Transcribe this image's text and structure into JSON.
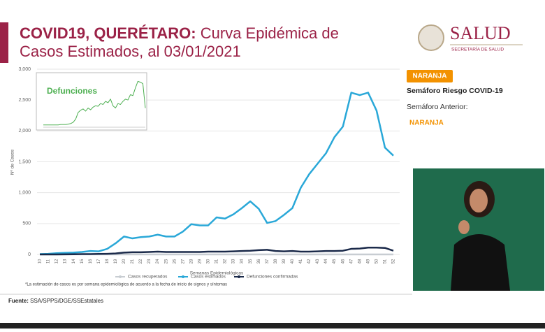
{
  "header": {
    "title_bold": "COVID19, QUERÉTARO:",
    "title_rest_1": "Curva Epidémica de",
    "title_line_2": "Casos Estimados, al 03/01/2021",
    "logo_text": "SALUD",
    "logo_subtext": "SECRETARÍA DE SALUD"
  },
  "semaforo": {
    "badge": "NARANJA",
    "label": "Semáforo Riesgo COVID-19",
    "previous_label": "Semáforo Anterior:",
    "previous_value": "NARANJA",
    "color": "#f39200"
  },
  "chart_data": [
    {
      "type": "line",
      "x_label": "Semanas Epidemiológicas",
      "y_label": "Nº de Casos",
      "categories": [
        "10",
        "11",
        "12",
        "13",
        "14",
        "15",
        "16",
        "17",
        "18",
        "19",
        "20",
        "21",
        "22",
        "23",
        "24",
        "25",
        "26",
        "27",
        "28",
        "29",
        "30",
        "31",
        "32",
        "33",
        "34",
        "35",
        "36",
        "37",
        "38",
        "39",
        "40",
        "41",
        "42",
        "43",
        "44",
        "45",
        "46",
        "47",
        "48",
        "49",
        "50",
        "51",
        "52"
      ],
      "series": [
        {
          "name": "Casos recuperados",
          "color": "#c8cdd2",
          "values": [
            0,
            0,
            0,
            0,
            0,
            0,
            0,
            0,
            0,
            0,
            0,
            0,
            0,
            0,
            0,
            0,
            0,
            0,
            0,
            0,
            0,
            0,
            0,
            0,
            0,
            0,
            0,
            0,
            0,
            0,
            0,
            0,
            0,
            0,
            0,
            0,
            0,
            0,
            0,
            0,
            0,
            0,
            0
          ]
        },
        {
          "name": "Casos estimados",
          "color": "#2aa8d8",
          "values": [
            5,
            10,
            20,
            25,
            30,
            40,
            55,
            50,
            90,
            180,
            290,
            260,
            280,
            290,
            320,
            290,
            290,
            370,
            490,
            470,
            470,
            600,
            580,
            650,
            750,
            860,
            740,
            510,
            540,
            640,
            750,
            1080,
            1300,
            1470,
            1640,
            1900,
            2070,
            2620,
            2580,
            2620,
            2330,
            1730,
            1600
          ]
        },
        {
          "name": "Defunciones confirmadas",
          "color": "#1b2a4a",
          "values": [
            0,
            0,
            0,
            2,
            3,
            5,
            5,
            8,
            10,
            15,
            30,
            35,
            35,
            40,
            45,
            40,
            40,
            40,
            40,
            40,
            45,
            45,
            45,
            50,
            55,
            60,
            70,
            75,
            55,
            50,
            55,
            45,
            45,
            50,
            55,
            55,
            60,
            90,
            95,
            110,
            110,
            105,
            60
          ]
        }
      ],
      "ylim": [
        0,
        3000
      ],
      "yticks": [
        0,
        500,
        {
          "value": 1000,
          "label": "1,000"
        },
        {
          "value": 1500,
          "label": "1,500"
        },
        {
          "value": 2000,
          "label": "2,000"
        },
        {
          "value": 2500,
          "label": "2,500"
        },
        {
          "value": 3000,
          "label": "3,000"
        }
      ],
      "grid": true
    },
    {
      "type": "line",
      "title": "Defunciones",
      "color": "#4caf50",
      "values": [
        2,
        2,
        2,
        2,
        2,
        2,
        2,
        3,
        3,
        3,
        4,
        5,
        8,
        15,
        30,
        35,
        38,
        33,
        40,
        36,
        42,
        45,
        44,
        50,
        48,
        55,
        52,
        60,
        45,
        40,
        50,
        48,
        55,
        60,
        58,
        70,
        68,
        85,
        100,
        98,
        95,
        40
      ],
      "ylim": [
        0,
        110
      ]
    }
  ],
  "footnote": "*La estimación de casos es por semana epidemiológica de acuerdo a la fecha de inicio de signos y síntomas",
  "source": {
    "label": "Fuente:",
    "text": "SSA/SPPS/DGE/SSEstatales"
  }
}
